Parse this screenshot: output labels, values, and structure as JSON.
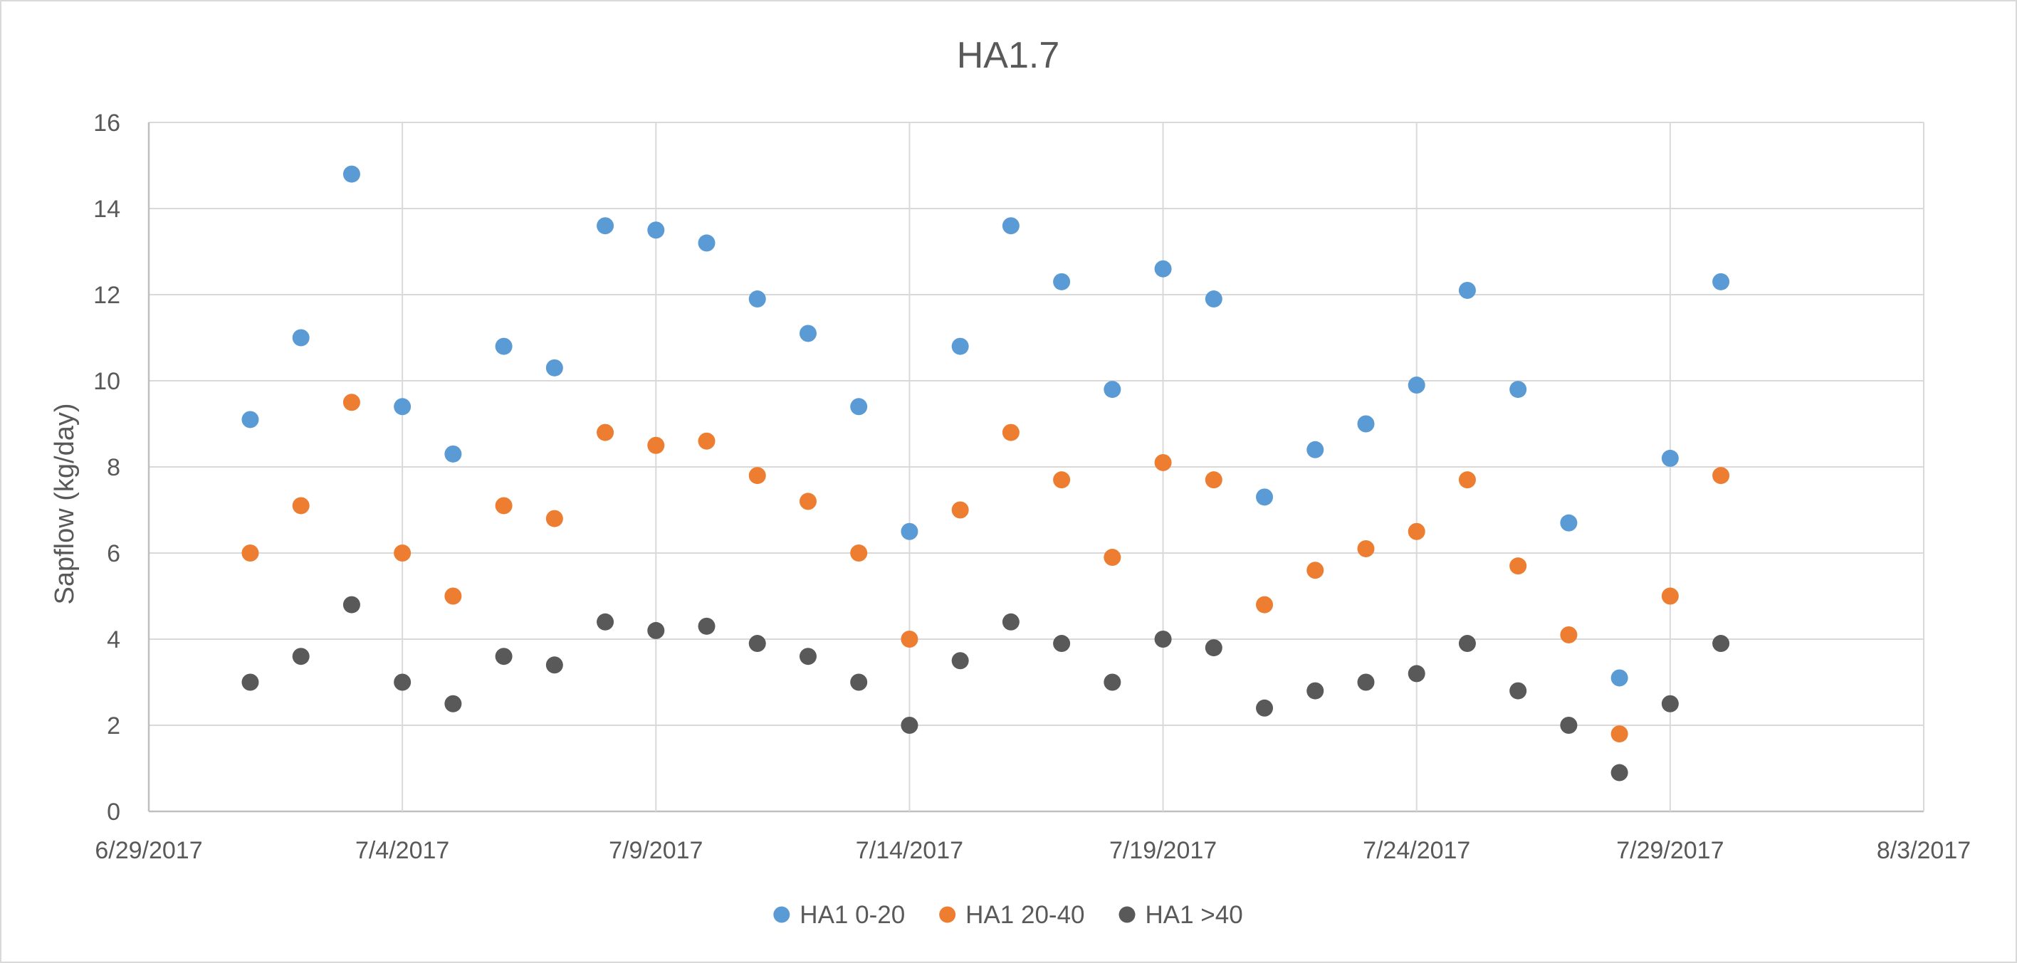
{
  "chart_data": {
    "type": "scatter",
    "title": "HA1.7",
    "xlabel": "",
    "ylabel": "Sapflow (kg/day)",
    "x_ticks": [
      "6/29/2017",
      "7/4/2017",
      "7/9/2017",
      "7/14/2017",
      "7/19/2017",
      "7/24/2017",
      "7/29/2017",
      "8/3/2017"
    ],
    "y_ticks": [
      "0",
      "2",
      "4",
      "6",
      "8",
      "10",
      "12",
      "14",
      "16"
    ],
    "xlim": [
      "6/29/2017",
      "8/3/2017"
    ],
    "ylim": [
      0,
      16
    ],
    "grid": true,
    "legend_position": "bottom",
    "x": [
      "7/1/2017",
      "7/2/2017",
      "7/3/2017",
      "7/4/2017",
      "7/5/2017",
      "7/6/2017",
      "7/7/2017",
      "7/8/2017",
      "7/9/2017",
      "7/10/2017",
      "7/11/2017",
      "7/12/2017",
      "7/13/2017",
      "7/14/2017",
      "7/15/2017",
      "7/16/2017",
      "7/17/2017",
      "7/18/2017",
      "7/19/2017",
      "7/20/2017",
      "7/21/2017",
      "7/22/2017",
      "7/23/2017",
      "7/24/2017",
      "7/25/2017",
      "7/26/2017",
      "7/27/2017",
      "7/28/2017",
      "7/29/2017",
      "7/30/2017"
    ],
    "series": [
      {
        "name": "HA1 0-20",
        "color": "#5b9bd5",
        "values": [
          9.1,
          11.0,
          14.8,
          9.4,
          8.3,
          10.8,
          10.3,
          13.6,
          13.5,
          13.2,
          11.9,
          11.1,
          9.4,
          6.5,
          10.8,
          13.6,
          12.3,
          9.8,
          12.6,
          11.9,
          7.3,
          8.4,
          9.0,
          9.9,
          12.1,
          9.8,
          6.7,
          3.1,
          8.2,
          12.3
        ]
      },
      {
        "name": "HA1 20-40",
        "color": "#ed7d31",
        "values": [
          6.0,
          7.1,
          9.5,
          6.0,
          5.0,
          7.1,
          6.8,
          8.8,
          8.5,
          8.6,
          7.8,
          7.2,
          6.0,
          4.0,
          7.0,
          8.8,
          7.7,
          5.9,
          8.1,
          7.7,
          4.8,
          5.6,
          6.1,
          6.5,
          7.7,
          5.7,
          4.1,
          1.8,
          5.0,
          7.8
        ]
      },
      {
        "name": "HA1 >40",
        "color": "#595959",
        "values": [
          3.0,
          3.6,
          4.8,
          3.0,
          2.5,
          3.6,
          3.4,
          4.4,
          4.2,
          4.3,
          3.9,
          3.6,
          3.0,
          2.0,
          3.5,
          4.4,
          3.9,
          3.0,
          4.0,
          3.8,
          2.4,
          2.8,
          3.0,
          3.2,
          3.9,
          2.8,
          2.0,
          0.9,
          2.5,
          3.9
        ]
      }
    ]
  }
}
